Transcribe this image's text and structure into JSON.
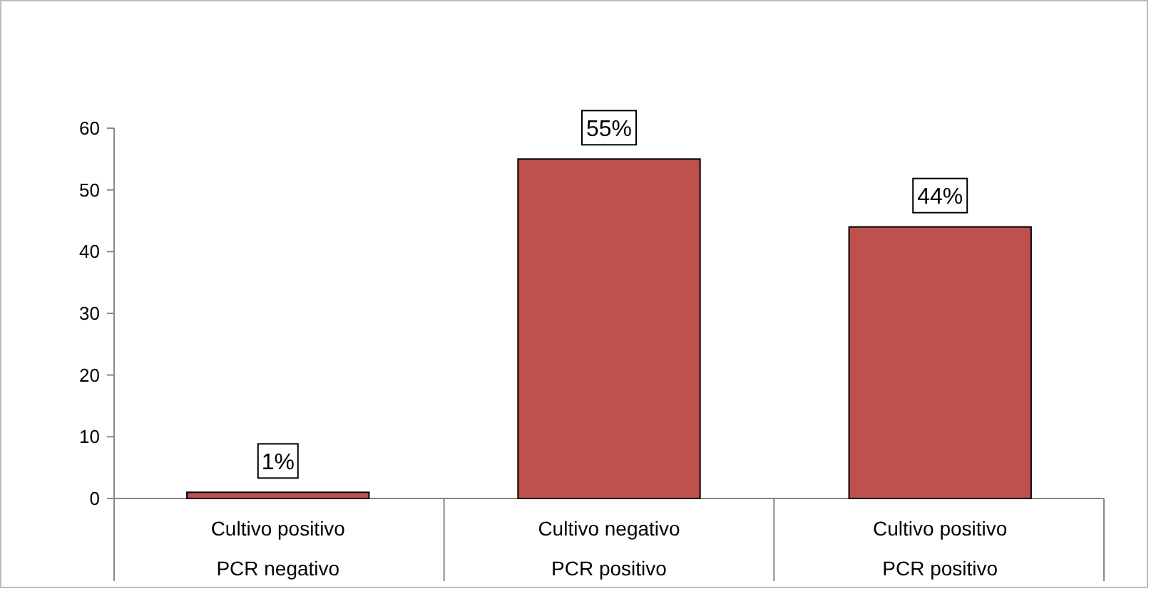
{
  "chart_data": {
    "type": "bar",
    "categories": [
      "Cultivo positivo\nPCR negativo",
      "Cultivo negativo\nPCR positivo",
      "Cultivo positivo\nPCR positivo"
    ],
    "values": [
      1,
      55,
      44
    ],
    "value_labels": [
      "1%",
      "55%",
      "44%"
    ],
    "color": "#c0504d",
    "ylim": [
      0,
      60
    ],
    "yticks": [
      0,
      10,
      20,
      30,
      40,
      50,
      60
    ],
    "grid": false
  }
}
